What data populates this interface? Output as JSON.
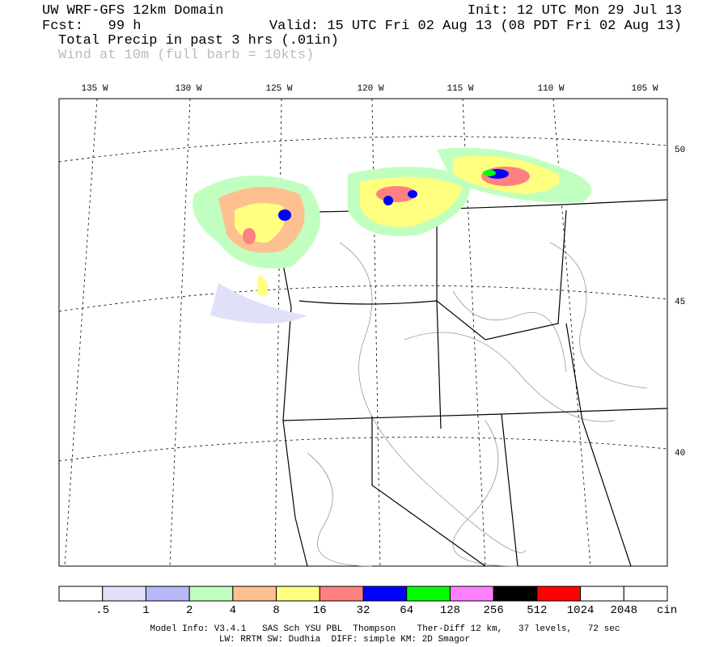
{
  "header": {
    "model": "UW WRF-GFS 12km Domain",
    "init": "Init: 12 UTC Mon 29 Jul 13",
    "fcst": "Fcst:   99 h",
    "valid": "Valid: 15 UTC Fri 02 Aug 13 (08 PDT Fri 02 Aug 13)",
    "field": "Total Precip in past 3 hrs (.01in)",
    "wind": "Wind at 10m (full barb = 10kts)"
  },
  "map": {
    "longitudes": [
      "135 W",
      "130 W",
      "125 W",
      "120 W",
      "115 W",
      "110 W",
      "105 W"
    ],
    "latitudes": [
      "50",
      "45",
      "40"
    ]
  },
  "colorbar": {
    "colors": [
      "#ffffff",
      "#e0e0f8",
      "#b8b8f8",
      "#c0ffc0",
      "#ffc090",
      "#ffff80",
      "#ff8080",
      "#0000ff",
      "#00ff00",
      "#ff80ff",
      "#000000",
      "#ff0000",
      "#ffffff",
      "#ffffff"
    ],
    "labels": [
      ".5",
      "1",
      "2",
      "4",
      "8",
      "16",
      "32",
      "64",
      "128",
      "256",
      "512",
      "1024",
      "2048"
    ],
    "unit": "cin"
  },
  "footer": {
    "line1": "Model Info: V3.4.1   SAS Sch YSU PBL  Thompson    Ther-Diff 12 km,   37 levels,   72 sec",
    "line2": "LW: RRTM SW: Dudhia  DIFF: simple KM: 2D Smagor"
  }
}
